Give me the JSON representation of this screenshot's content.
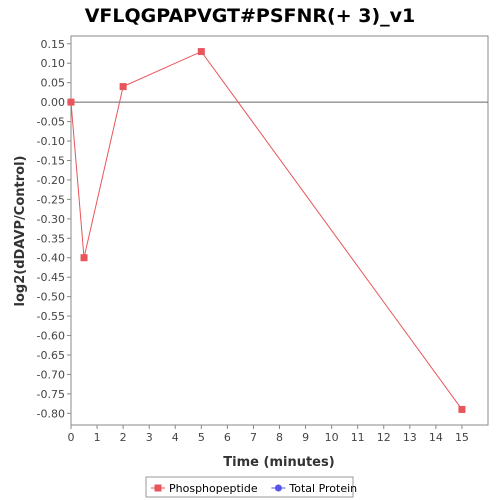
{
  "chart_data": {
    "type": "line",
    "title": "VFLQGPAPVGT#PSFNR(+ 3)_v1",
    "xlabel": "Time (minutes)",
    "ylabel": "log2(dDAVP/Control)",
    "xlim": [
      0,
      16
    ],
    "ylim": [
      -0.83,
      0.17
    ],
    "x_ticks": [
      0,
      1,
      2,
      3,
      4,
      5,
      6,
      7,
      8,
      9,
      10,
      11,
      12,
      13,
      14,
      15
    ],
    "y_ticks": [
      0.15,
      0.1,
      0.05,
      0.0,
      -0.05,
      -0.1,
      -0.15,
      -0.2,
      -0.25,
      -0.3,
      -0.35,
      -0.4,
      -0.45,
      -0.5,
      -0.55,
      -0.6,
      -0.65,
      -0.7,
      -0.75,
      -0.8
    ],
    "y_tick_labels": [
      "0.15",
      "0.10",
      "0.05",
      "0.00",
      "-0.05",
      "-0.10",
      "-0.15",
      "-0.20",
      "-0.25",
      "-0.30",
      "-0.35",
      "-0.40",
      "-0.45",
      "-0.50",
      "-0.55",
      "-0.60",
      "-0.65",
      "-0.70",
      "-0.75",
      "-0.80"
    ],
    "zero_line": true,
    "grid": false,
    "legend_position": "bottom",
    "series": [
      {
        "name": "Phosphopeptide",
        "color": "#e8555a",
        "marker": "square",
        "x": [
          0,
          0.5,
          2,
          5,
          15
        ],
        "y": [
          0.0,
          -0.4,
          0.04,
          0.13,
          -0.79
        ]
      },
      {
        "name": "Total Protein",
        "color": "#5555ee",
        "marker": "circle",
        "x": [],
        "y": []
      }
    ]
  }
}
